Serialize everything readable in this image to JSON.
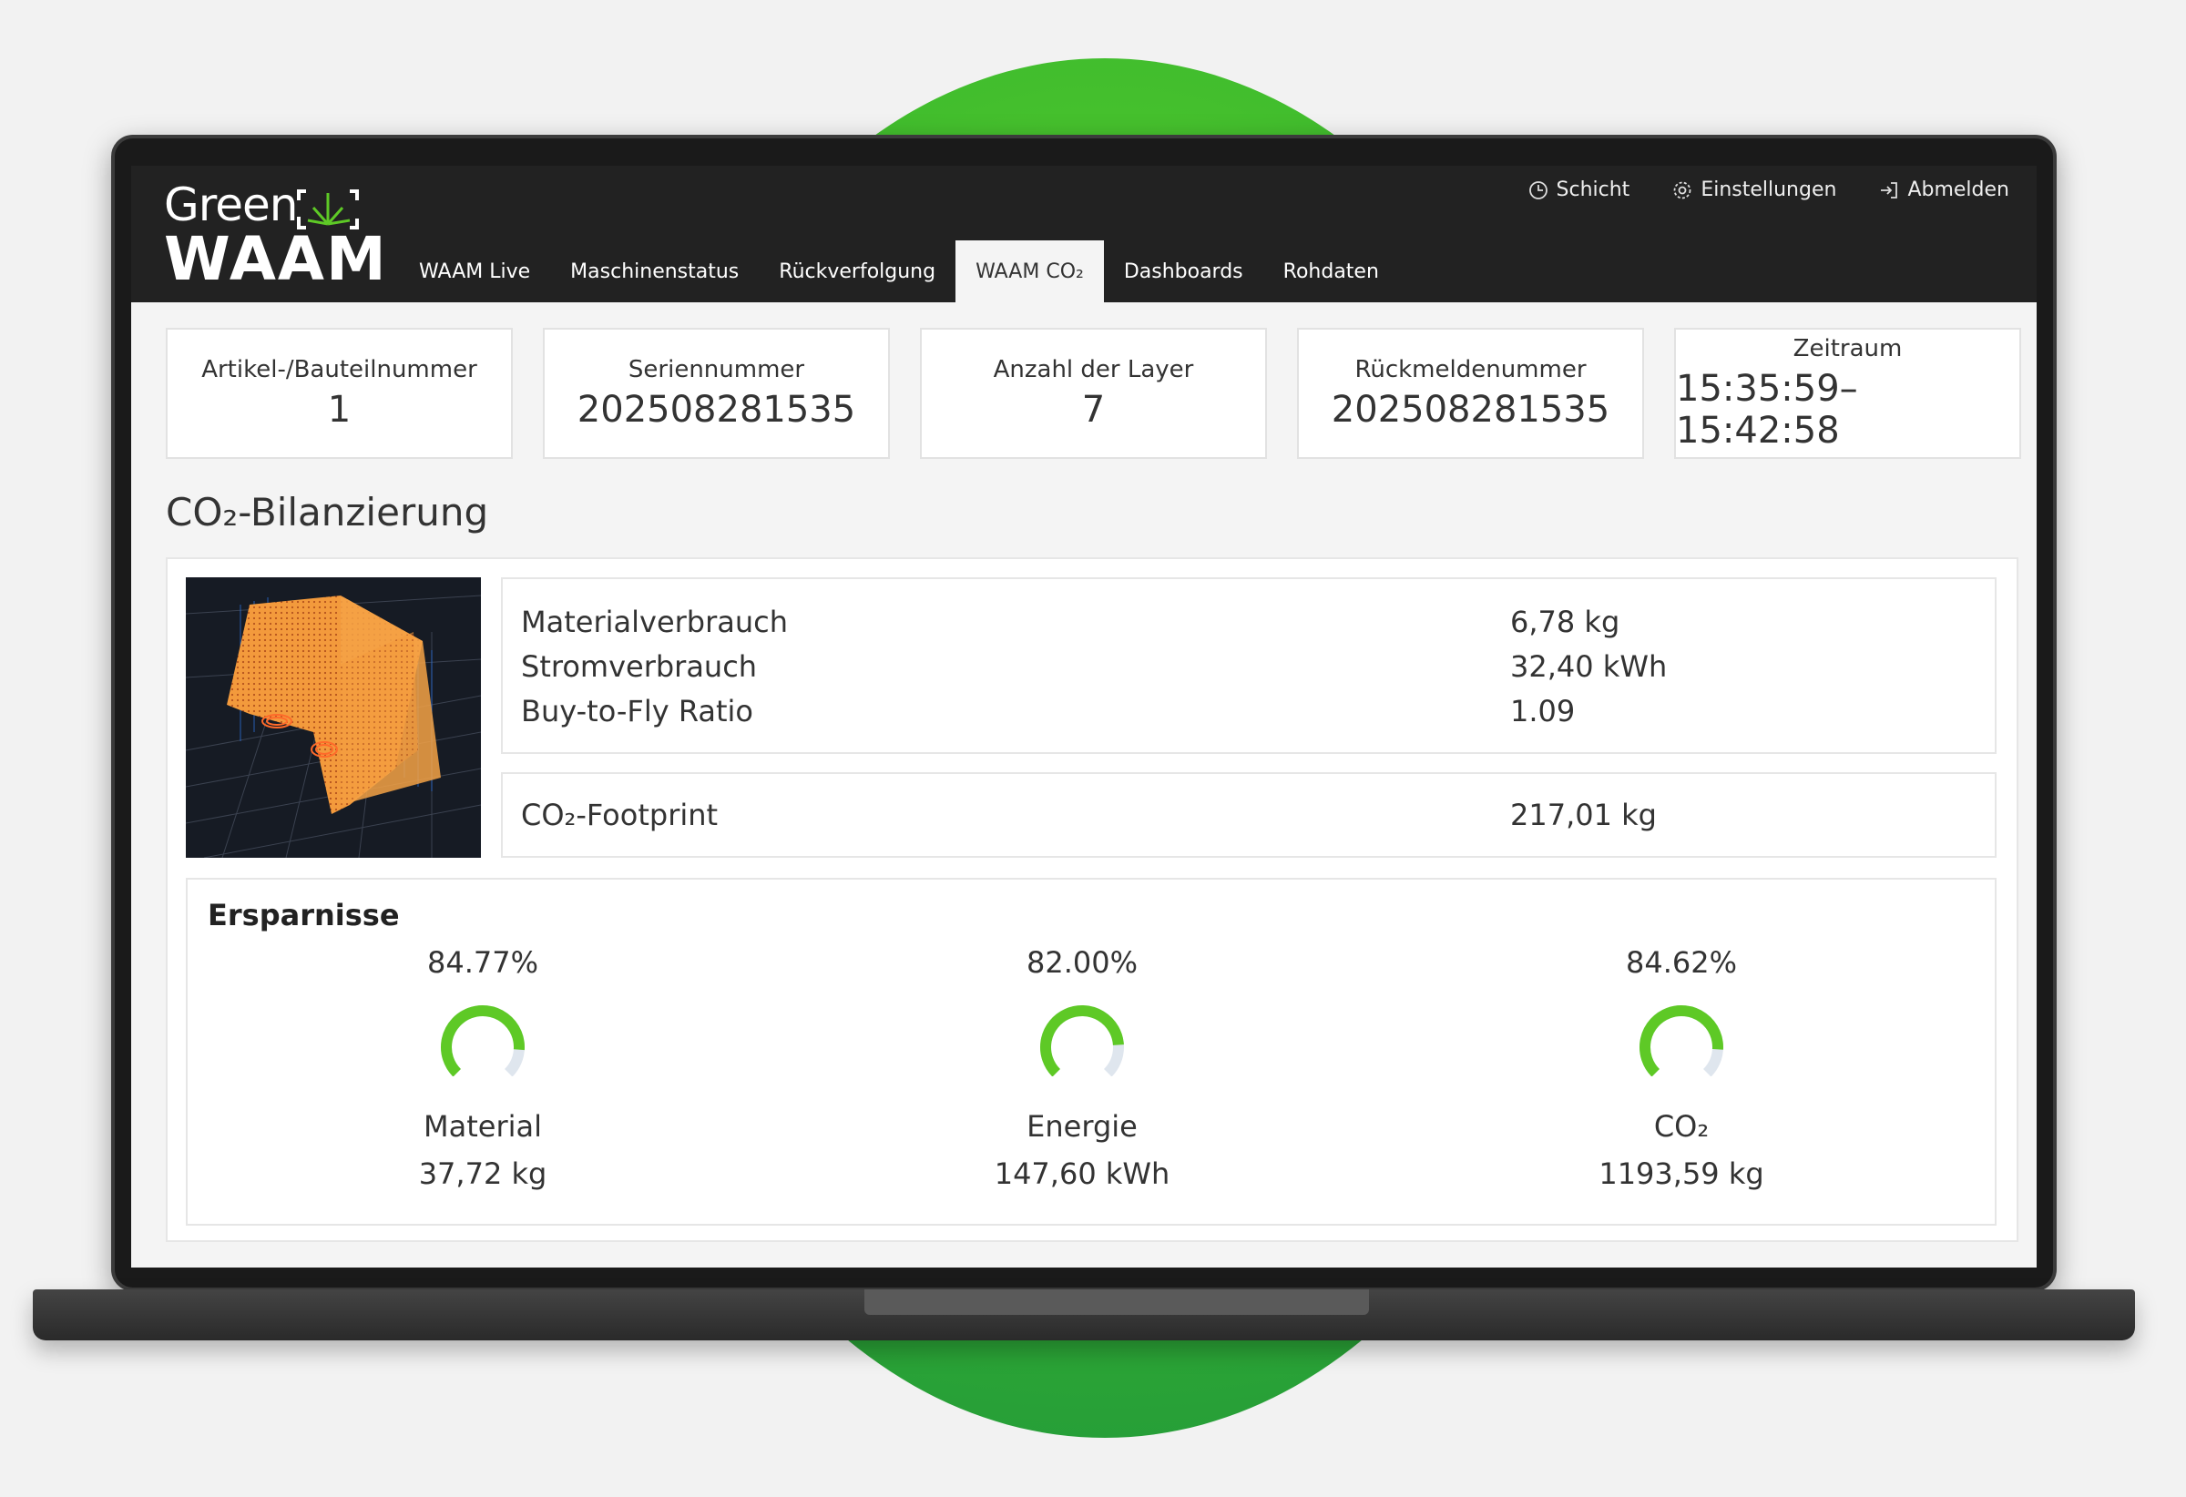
{
  "app": {
    "logo_line1": "Green",
    "logo_line2": "WAAM"
  },
  "header_actions": [
    {
      "label": "Schicht",
      "icon": "clock-icon"
    },
    {
      "label": "Einstellungen",
      "icon": "gear-icon"
    },
    {
      "label": "Abmelden",
      "icon": "logout-icon"
    }
  ],
  "nav": {
    "tabs": [
      {
        "label": "WAAM Live"
      },
      {
        "label": "Maschinenstatus"
      },
      {
        "label": "Rückverfolgung"
      },
      {
        "label": "WAAM CO₂",
        "active": true
      },
      {
        "label": "Dashboards"
      },
      {
        "label": "Rohdaten"
      }
    ]
  },
  "cards": [
    {
      "label": "Artikel-/Bauteilnummer",
      "value": "1"
    },
    {
      "label": "Seriennummer",
      "value": "202508281535"
    },
    {
      "label": "Anzahl der Layer",
      "value": "7"
    },
    {
      "label": "Rückmeldenummer",
      "value": "202508281535"
    },
    {
      "label": "Zeitraum",
      "value": "15:35:59–15:42:58"
    }
  ],
  "section": {
    "title": "CO₂-Bilanzierung"
  },
  "metrics": [
    {
      "label": "Materialverbrauch",
      "value": "6,78 kg"
    },
    {
      "label": "Stromverbrauch",
      "value": "32,40 kWh"
    },
    {
      "label": "Buy-to-Fly Ratio",
      "value": "1.09"
    }
  ],
  "footprint": {
    "label": "CO₂-Footprint",
    "value": "217,01 kg"
  },
  "savings": {
    "title": "Ersparnisse",
    "items": [
      {
        "percent_label": "84.77%",
        "fraction": 0.8477,
        "name": "Material",
        "amount": "37,72 kg"
      },
      {
        "percent_label": "82.00%",
        "fraction": 0.82,
        "name": "Energie",
        "amount": "147,60 kWh"
      },
      {
        "percent_label": "84.62%",
        "fraction": 0.8462,
        "name": "CO₂",
        "amount": "1193,59 kg"
      }
    ]
  },
  "colors": {
    "accent_green": "#5ec926",
    "gauge_track": "#dfe6ee",
    "header_bg": "#222222"
  }
}
